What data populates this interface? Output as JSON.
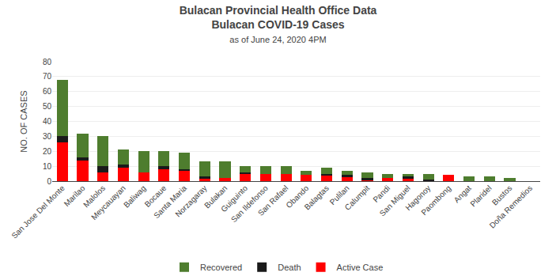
{
  "chart_data": {
    "type": "bar",
    "stacked": true,
    "title": [
      "Bulacan Provincial Health Office Data",
      "Bulacan COVID-19 Cases"
    ],
    "subtitle": "as of June 24, 2020 4PM",
    "y_label": "NO. OF CASES",
    "categories": [
      "San Jose Del Monte",
      "Marilao",
      "Malolos",
      "Meycauayan",
      "Baliwag",
      "Bocaue",
      "Santa Maria",
      "Norzagaray",
      "Bulakan",
      "Guiguinto",
      "San Ildefonso",
      "San Rafael",
      "Obando",
      "Balagtas",
      "Pulilan",
      "Calumpit",
      "Pandi",
      "San Miguel",
      "Hagonoy",
      "Paombong",
      "Angat",
      "Plaridel",
      "Bustos",
      "Doña Remedios"
    ],
    "series": [
      {
        "name": "Active Case",
        "color": "#FF0000",
        "values": [
          26,
          14,
          6,
          9,
          6,
          8,
          7,
          2,
          2,
          5,
          5,
          5,
          4,
          4,
          3,
          1,
          2,
          2,
          0,
          4,
          0,
          0,
          0,
          0
        ]
      },
      {
        "name": "Death",
        "color": "#1a1a1a",
        "values": [
          4,
          2,
          4,
          2,
          0,
          2,
          1,
          1,
          0,
          1,
          0,
          0,
          0,
          1,
          1,
          1,
          0,
          1,
          1,
          0,
          0,
          0,
          0,
          0
        ]
      },
      {
        "name": "Recovered",
        "color": "#4e7d2e",
        "values": [
          38,
          16,
          20,
          10,
          14,
          10,
          11,
          10,
          11,
          4,
          5,
          5,
          3,
          4,
          3,
          4,
          3,
          2,
          4,
          0,
          3,
          3,
          2,
          0
        ]
      }
    ],
    "ylim": [
      0,
      80
    ],
    "yticks": [
      0,
      10,
      20,
      30,
      40,
      50,
      60,
      70,
      80
    ],
    "grid": true,
    "legend": "bottom"
  }
}
